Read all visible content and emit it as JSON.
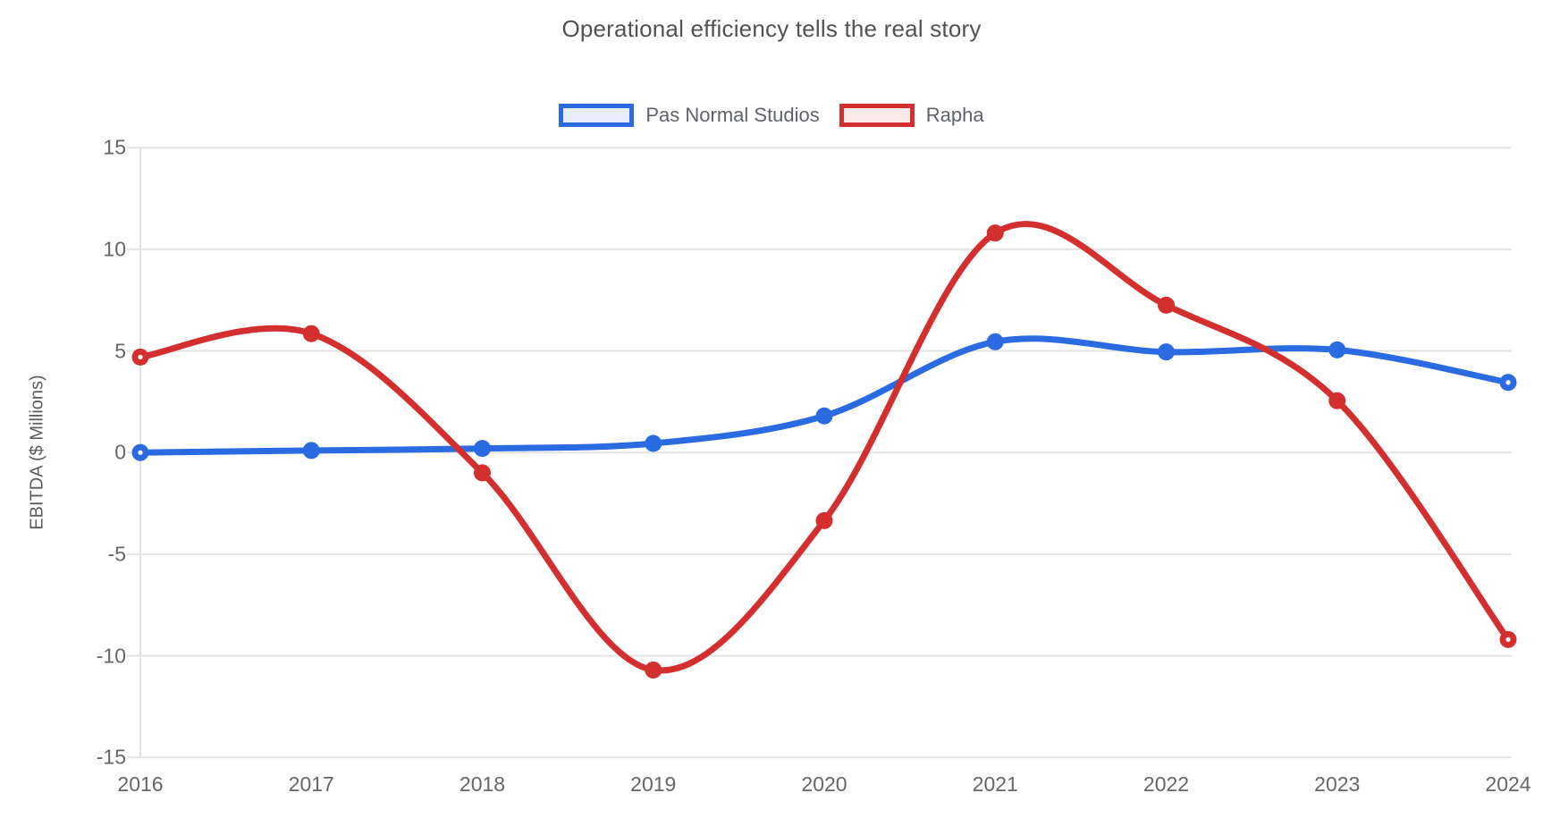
{
  "title": "Operational efficiency tells the real story",
  "y_axis": {
    "label": "EBITDA ($ Millions)",
    "ticks": [
      "15",
      "10",
      "5",
      "0",
      "-5",
      "-10",
      "-15"
    ]
  },
  "x_axis": {
    "ticks": [
      "2016",
      "2017",
      "2018",
      "2019",
      "2020",
      "2021",
      "2022",
      "2023",
      "2024"
    ]
  },
  "legend": {
    "items": [
      {
        "id": "pas-normal-studios",
        "label": "Pas Normal Studios",
        "color": "#2A6BE2",
        "fill": "#E8EDFC"
      },
      {
        "id": "rapha",
        "label": "Rapha",
        "color": "#D32F2F",
        "fill": "#FCE9E9"
      }
    ]
  },
  "chart_data": {
    "type": "line",
    "curve": "smooth",
    "title": "Operational efficiency tells the real story",
    "xlabel": "",
    "ylabel": "EBITDA ($ Millions)",
    "x": [
      2016,
      2017,
      2018,
      2019,
      2020,
      2021,
      2022,
      2023,
      2024
    ],
    "series": [
      {
        "name": "Pas Normal Studios",
        "color": "#2A6BE2",
        "values": [
          0.0,
          0.1,
          0.2,
          0.45,
          1.8,
          5.45,
          4.95,
          5.05,
          3.45
        ]
      },
      {
        "name": "Rapha",
        "color": "#D32F2F",
        "values": [
          4.7,
          5.85,
          -1.0,
          -10.7,
          -3.35,
          10.8,
          7.25,
          2.55,
          -9.2
        ]
      }
    ],
    "ylim": [
      -15,
      15
    ],
    "yticks": [
      15,
      10,
      5,
      0,
      -5,
      -10,
      -15
    ],
    "grid": true,
    "grid_color": "#E3E3E3",
    "legend_position": "top",
    "point_markers": true
  }
}
